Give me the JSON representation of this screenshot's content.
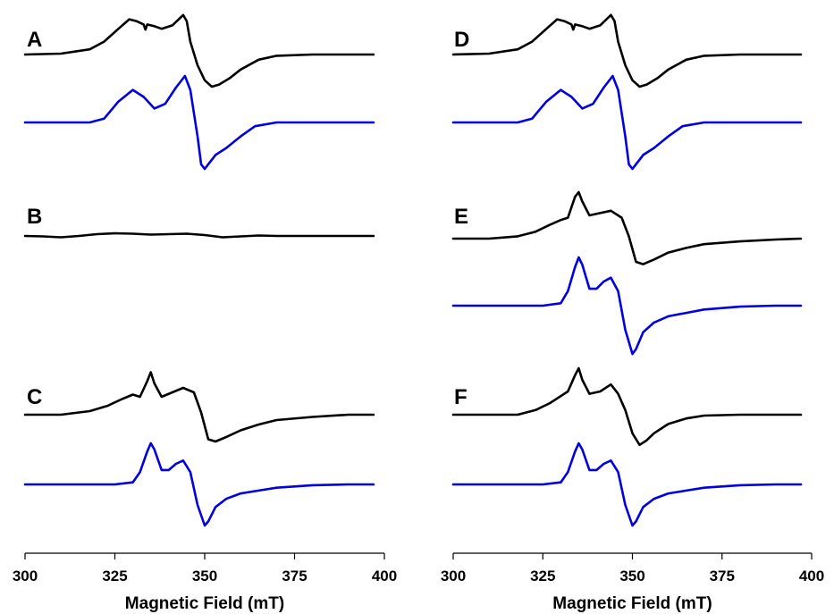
{
  "colors": {
    "experimental": "#000000",
    "simulated": "#0000e0"
  },
  "chart_data": [
    {
      "type": "line",
      "side": "left",
      "xlabel": "Magnetic Field (mT)",
      "xlim": [
        300,
        400
      ],
      "xticks": [
        300,
        325,
        350,
        375,
        400
      ],
      "panels": [
        {
          "label": "A",
          "traces": [
            {
              "kind": "experimental",
              "x": [
                300,
                310,
                318,
                322,
                326,
                329,
                331,
                333,
                333.5,
                334,
                336,
                338,
                341,
                344,
                345,
                346,
                348,
                350,
                352,
                354,
                357,
                360,
                365,
                370,
                380,
                397
              ],
              "y": [
                0.0,
                0.02,
                0.12,
                0.3,
                0.6,
                0.82,
                0.78,
                0.7,
                0.58,
                0.7,
                0.66,
                0.6,
                0.68,
                0.92,
                0.78,
                0.3,
                -0.25,
                -0.6,
                -0.75,
                -0.7,
                -0.55,
                -0.35,
                -0.12,
                -0.03,
                0.0,
                0.0
              ]
            },
            {
              "kind": "simulated",
              "x": [
                300,
                318,
                322,
                326,
                330,
                333,
                336,
                339,
                342,
                344.5,
                346,
                348,
                349,
                350,
                351,
                353,
                356,
                360,
                364,
                370,
                397
              ],
              "y": [
                0.0,
                0.0,
                0.08,
                0.45,
                0.7,
                0.55,
                0.3,
                0.4,
                0.75,
                1.0,
                0.7,
                -0.3,
                -0.9,
                -1.0,
                -0.9,
                -0.7,
                -0.55,
                -0.3,
                -0.08,
                0.0,
                0.0
              ]
            }
          ]
        },
        {
          "label": "B",
          "traces": [
            {
              "kind": "experimental",
              "x": [
                300,
                305,
                310,
                315,
                320,
                325,
                330,
                335,
                340,
                345,
                350,
                355,
                360,
                365,
                370,
                380,
                397
              ],
              "y": [
                0.0,
                -0.01,
                -0.03,
                0.0,
                0.04,
                0.06,
                0.05,
                0.03,
                0.04,
                0.05,
                0.02,
                -0.03,
                -0.01,
                0.01,
                0.0,
                0.0,
                0.0
              ]
            }
          ]
        },
        {
          "label": "C",
          "traces": [
            {
              "kind": "experimental",
              "x": [
                300,
                310,
                318,
                323,
                327,
                330,
                332,
                334,
                335,
                336,
                338,
                341,
                344,
                347,
                349,
                351,
                353,
                356,
                360,
                365,
                370,
                380,
                390,
                397
              ],
              "y": [
                0.0,
                0.0,
                0.08,
                0.2,
                0.35,
                0.45,
                0.4,
                0.75,
                0.95,
                0.7,
                0.4,
                0.5,
                0.6,
                0.5,
                0.05,
                -0.55,
                -0.6,
                -0.5,
                -0.35,
                -0.22,
                -0.12,
                -0.05,
                0.0,
                0.0
              ]
            },
            {
              "kind": "simulated",
              "x": [
                300,
                325,
                330,
                332,
                334,
                335,
                336,
                338,
                340,
                342,
                344,
                346,
                348,
                350,
                351,
                353,
                356,
                360,
                365,
                370,
                380,
                390,
                397
              ],
              "y": [
                0.0,
                0.0,
                0.05,
                0.3,
                0.8,
                1.0,
                0.85,
                0.35,
                0.35,
                0.5,
                0.58,
                0.3,
                -0.5,
                -1.0,
                -0.9,
                -0.55,
                -0.35,
                -0.22,
                -0.15,
                -0.08,
                -0.02,
                0.0,
                0.0
              ]
            }
          ]
        }
      ]
    },
    {
      "type": "line",
      "side": "right",
      "xlabel": "Magnetic Field (mT)",
      "xlim": [
        300,
        400
      ],
      "xticks": [
        300,
        325,
        350,
        375,
        400
      ],
      "panels": [
        {
          "label": "D",
          "traces": [
            {
              "kind": "experimental",
              "x": [
                300,
                310,
                318,
                322,
                326,
                329,
                331,
                333,
                333.5,
                334,
                336,
                338,
                341,
                344,
                345,
                346,
                348,
                350,
                352,
                354,
                357,
                360,
                365,
                370,
                380,
                397
              ],
              "y": [
                0.0,
                0.02,
                0.12,
                0.3,
                0.6,
                0.82,
                0.78,
                0.7,
                0.58,
                0.7,
                0.66,
                0.6,
                0.68,
                0.92,
                0.78,
                0.3,
                -0.25,
                -0.6,
                -0.75,
                -0.7,
                -0.55,
                -0.35,
                -0.12,
                -0.03,
                0.0,
                0.0
              ]
            },
            {
              "kind": "simulated",
              "x": [
                300,
                318,
                322,
                326,
                330,
                333,
                336,
                339,
                342,
                344.5,
                346,
                348,
                349,
                350,
                351,
                353,
                356,
                360,
                364,
                370,
                397
              ],
              "y": [
                0.0,
                0.0,
                0.08,
                0.45,
                0.7,
                0.55,
                0.3,
                0.4,
                0.75,
                1.0,
                0.7,
                -0.3,
                -0.9,
                -1.0,
                -0.9,
                -0.7,
                -0.55,
                -0.3,
                -0.08,
                0.0,
                0.0
              ]
            }
          ]
        },
        {
          "label": "E",
          "traces": [
            {
              "kind": "experimental",
              "x": [
                300,
                310,
                318,
                323,
                327,
                330,
                332,
                334,
                335,
                336,
                338,
                341,
                344,
                347,
                349,
                351,
                353,
                356,
                360,
                365,
                370,
                380,
                390,
                397
              ],
              "y": [
                0.0,
                0.0,
                0.05,
                0.15,
                0.3,
                0.4,
                0.45,
                0.9,
                1.0,
                0.8,
                0.5,
                0.55,
                0.6,
                0.45,
                0.05,
                -0.5,
                -0.55,
                -0.45,
                -0.3,
                -0.2,
                -0.12,
                -0.06,
                -0.02,
                0.0
              ]
            },
            {
              "kind": "simulated",
              "x": [
                300,
                325,
                330,
                332,
                334,
                335,
                336,
                338,
                340,
                342,
                344,
                346,
                348,
                350,
                351,
                353,
                356,
                360,
                365,
                370,
                380,
                390,
                397
              ],
              "y": [
                0.0,
                0.0,
                0.05,
                0.3,
                0.8,
                1.0,
                0.85,
                0.35,
                0.35,
                0.5,
                0.58,
                0.3,
                -0.5,
                -1.0,
                -0.9,
                -0.55,
                -0.35,
                -0.22,
                -0.15,
                -0.08,
                -0.02,
                0.0,
                0.0
              ]
            }
          ]
        },
        {
          "label": "F",
          "traces": [
            {
              "kind": "experimental",
              "x": [
                300,
                310,
                318,
                323,
                327,
                330,
                332,
                334,
                335,
                336,
                338,
                341,
                344,
                346,
                348,
                350,
                352,
                354,
                356,
                360,
                365,
                370,
                380,
                390,
                397
              ],
              "y": [
                0.0,
                0.0,
                0.0,
                0.1,
                0.25,
                0.4,
                0.5,
                0.85,
                1.0,
                0.75,
                0.45,
                0.5,
                0.65,
                0.45,
                0.1,
                -0.4,
                -0.65,
                -0.55,
                -0.4,
                -0.2,
                -0.08,
                -0.02,
                0.0,
                0.0,
                0.0
              ]
            },
            {
              "kind": "simulated",
              "x": [
                300,
                325,
                330,
                332,
                334,
                335,
                336,
                338,
                340,
                342,
                344,
                346,
                348,
                350,
                351,
                353,
                356,
                360,
                365,
                370,
                380,
                390,
                397
              ],
              "y": [
                0.0,
                0.0,
                0.05,
                0.3,
                0.8,
                1.0,
                0.85,
                0.35,
                0.35,
                0.5,
                0.58,
                0.3,
                -0.5,
                -1.0,
                -0.9,
                -0.55,
                -0.35,
                -0.22,
                -0.15,
                -0.08,
                -0.02,
                0.0,
                0.0
              ]
            }
          ]
        }
      ]
    }
  ]
}
